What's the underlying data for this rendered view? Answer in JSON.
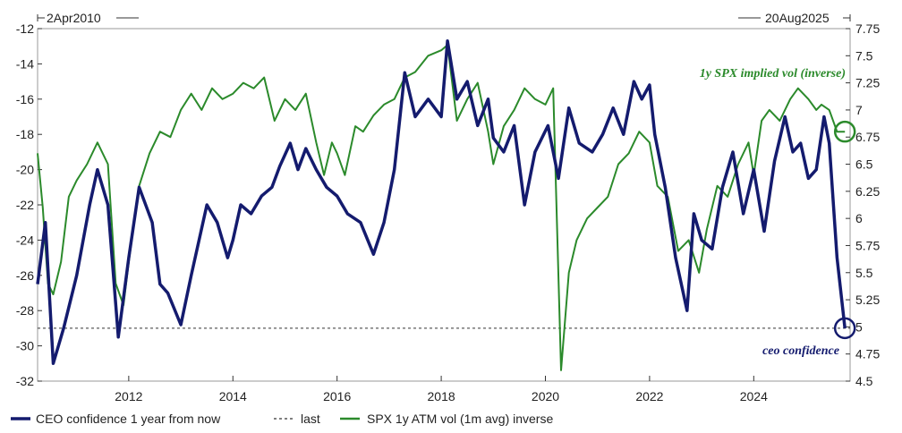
{
  "chart_data": {
    "type": "line",
    "date_range": {
      "start": "2Apr2010",
      "end": "20Aug2025"
    },
    "x_ticks": [
      "2012",
      "2014",
      "2016",
      "2018",
      "2020",
      "2022",
      "2024"
    ],
    "left_axis": {
      "ylim": [
        -32,
        -12
      ],
      "ticks": [
        "-12",
        "-14",
        "-16",
        "-18",
        "-20",
        "-22",
        "-24",
        "-26",
        "-28",
        "-30",
        "-32"
      ]
    },
    "right_axis": {
      "ylim": [
        4.5,
        7.75
      ],
      "ticks": [
        "7.75",
        "7.5",
        "7.25",
        "7",
        "6.75",
        "6.5",
        "6.25",
        "6",
        "5.75",
        "5.5",
        "5.25",
        "5",
        "4.75",
        "4.5"
      ]
    },
    "series": [
      {
        "name": "CEO confidence 1 year from now",
        "axis": "left",
        "color": "#141b6e",
        "points": [
          [
            2010.25,
            -26.5
          ],
          [
            2010.4,
            -23
          ],
          [
            2010.55,
            -31
          ],
          [
            2010.75,
            -29
          ],
          [
            2011.0,
            -26
          ],
          [
            2011.25,
            -22
          ],
          [
            2011.4,
            -20
          ],
          [
            2011.6,
            -22
          ],
          [
            2011.8,
            -29.5
          ],
          [
            2012.0,
            -25
          ],
          [
            2012.2,
            -21
          ],
          [
            2012.45,
            -23
          ],
          [
            2012.6,
            -26.5
          ],
          [
            2012.75,
            -27
          ],
          [
            2013.0,
            -28.8
          ],
          [
            2013.2,
            -26
          ],
          [
            2013.5,
            -22
          ],
          [
            2013.7,
            -23
          ],
          [
            2013.9,
            -25
          ],
          [
            2014.0,
            -24
          ],
          [
            2014.15,
            -22
          ],
          [
            2014.35,
            -22.5
          ],
          [
            2014.55,
            -21.5
          ],
          [
            2014.75,
            -21
          ],
          [
            2014.9,
            -19.8
          ],
          [
            2015.1,
            -18.5
          ],
          [
            2015.25,
            -20
          ],
          [
            2015.4,
            -18.8
          ],
          [
            2015.6,
            -20
          ],
          [
            2015.8,
            -21
          ],
          [
            2016.0,
            -21.5
          ],
          [
            2016.2,
            -22.5
          ],
          [
            2016.45,
            -23
          ],
          [
            2016.7,
            -24.8
          ],
          [
            2016.9,
            -23
          ],
          [
            2017.1,
            -20
          ],
          [
            2017.3,
            -14.5
          ],
          [
            2017.5,
            -17
          ],
          [
            2017.75,
            -16
          ],
          [
            2018.0,
            -17
          ],
          [
            2018.12,
            -12.7
          ],
          [
            2018.3,
            -16
          ],
          [
            2018.5,
            -15
          ],
          [
            2018.7,
            -17.5
          ],
          [
            2018.9,
            -16
          ],
          [
            2019.0,
            -18.2
          ],
          [
            2019.2,
            -19
          ],
          [
            2019.4,
            -17.5
          ],
          [
            2019.6,
            -22
          ],
          [
            2019.8,
            -19
          ],
          [
            2020.05,
            -17.5
          ],
          [
            2020.25,
            -20.5
          ],
          [
            2020.45,
            -16.5
          ],
          [
            2020.65,
            -18.5
          ],
          [
            2020.9,
            -19
          ],
          [
            2021.1,
            -18
          ],
          [
            2021.3,
            -16.5
          ],
          [
            2021.5,
            -18
          ],
          [
            2021.7,
            -15
          ],
          [
            2021.85,
            -16
          ],
          [
            2022.0,
            -15.2
          ],
          [
            2022.1,
            -18
          ],
          [
            2022.3,
            -21
          ],
          [
            2022.5,
            -25
          ],
          [
            2022.72,
            -28
          ],
          [
            2022.85,
            -22.5
          ],
          [
            2023.0,
            -24
          ],
          [
            2023.2,
            -24.5
          ],
          [
            2023.4,
            -21
          ],
          [
            2023.6,
            -19
          ],
          [
            2023.8,
            -22.5
          ],
          [
            2024.0,
            -20
          ],
          [
            2024.2,
            -23.5
          ],
          [
            2024.4,
            -19.5
          ],
          [
            2024.6,
            -17
          ],
          [
            2024.75,
            -19
          ],
          [
            2024.9,
            -18.5
          ],
          [
            2025.05,
            -20.5
          ],
          [
            2025.2,
            -20
          ],
          [
            2025.35,
            -17
          ],
          [
            2025.45,
            -18.5
          ],
          [
            2025.6,
            -25
          ],
          [
            2025.75,
            -29
          ]
        ]
      },
      {
        "name": "last",
        "axis": "left",
        "style": "dotted",
        "color": "#333333",
        "value": -29
      },
      {
        "name": "SPX 1y ATM vol (1m avg) inverse",
        "axis": "right",
        "color": "#2b8a2b",
        "points": [
          [
            2010.25,
            6.6
          ],
          [
            2010.35,
            6.1
          ],
          [
            2010.45,
            5.4
          ],
          [
            2010.55,
            5.3
          ],
          [
            2010.7,
            5.6
          ],
          [
            2010.85,
            6.2
          ],
          [
            2011.0,
            6.35
          ],
          [
            2011.2,
            6.5
          ],
          [
            2011.4,
            6.7
          ],
          [
            2011.6,
            6.5
          ],
          [
            2011.75,
            5.4
          ],
          [
            2011.9,
            5.2
          ],
          [
            2012.0,
            5.6
          ],
          [
            2012.2,
            6.3
          ],
          [
            2012.4,
            6.6
          ],
          [
            2012.6,
            6.8
          ],
          [
            2012.8,
            6.75
          ],
          [
            2013.0,
            7.0
          ],
          [
            2013.2,
            7.15
          ],
          [
            2013.4,
            7.0
          ],
          [
            2013.6,
            7.2
          ],
          [
            2013.8,
            7.1
          ],
          [
            2014.0,
            7.15
          ],
          [
            2014.2,
            7.25
          ],
          [
            2014.4,
            7.2
          ],
          [
            2014.6,
            7.3
          ],
          [
            2014.8,
            6.9
          ],
          [
            2015.0,
            7.1
          ],
          [
            2015.2,
            7.0
          ],
          [
            2015.4,
            7.15
          ],
          [
            2015.6,
            6.7
          ],
          [
            2015.75,
            6.4
          ],
          [
            2015.9,
            6.7
          ],
          [
            2016.0,
            6.6
          ],
          [
            2016.15,
            6.4
          ],
          [
            2016.35,
            6.85
          ],
          [
            2016.5,
            6.8
          ],
          [
            2016.7,
            6.95
          ],
          [
            2016.9,
            7.05
          ],
          [
            2017.1,
            7.1
          ],
          [
            2017.3,
            7.3
          ],
          [
            2017.5,
            7.35
          ],
          [
            2017.75,
            7.5
          ],
          [
            2018.0,
            7.55
          ],
          [
            2018.12,
            7.6
          ],
          [
            2018.3,
            6.9
          ],
          [
            2018.5,
            7.1
          ],
          [
            2018.7,
            7.25
          ],
          [
            2018.9,
            6.8
          ],
          [
            2019.0,
            6.5
          ],
          [
            2019.2,
            6.85
          ],
          [
            2019.4,
            7.0
          ],
          [
            2019.6,
            7.2
          ],
          [
            2019.8,
            7.1
          ],
          [
            2020.0,
            7.05
          ],
          [
            2020.15,
            7.2
          ],
          [
            2020.3,
            4.6
          ],
          [
            2020.45,
            5.5
          ],
          [
            2020.6,
            5.8
          ],
          [
            2020.8,
            6.0
          ],
          [
            2021.0,
            6.1
          ],
          [
            2021.2,
            6.2
          ],
          [
            2021.4,
            6.5
          ],
          [
            2021.6,
            6.6
          ],
          [
            2021.8,
            6.8
          ],
          [
            2022.0,
            6.7
          ],
          [
            2022.15,
            6.3
          ],
          [
            2022.35,
            6.2
          ],
          [
            2022.55,
            5.7
          ],
          [
            2022.75,
            5.8
          ],
          [
            2022.95,
            5.5
          ],
          [
            2023.1,
            5.9
          ],
          [
            2023.3,
            6.3
          ],
          [
            2023.5,
            6.2
          ],
          [
            2023.7,
            6.5
          ],
          [
            2023.9,
            6.7
          ],
          [
            2024.0,
            6.4
          ],
          [
            2024.15,
            6.9
          ],
          [
            2024.3,
            7.0
          ],
          [
            2024.5,
            6.9
          ],
          [
            2024.7,
            7.1
          ],
          [
            2024.85,
            7.2
          ],
          [
            2025.05,
            7.1
          ],
          [
            2025.2,
            7.0
          ],
          [
            2025.3,
            7.05
          ],
          [
            2025.45,
            7.0
          ],
          [
            2025.6,
            6.8
          ],
          [
            2025.75,
            6.8
          ]
        ]
      }
    ],
    "annotations": [
      {
        "text": "1y SPX implied vol (inverse)",
        "color": "#2b8a2b"
      },
      {
        "text": "ceo confidence",
        "color": "#141b6e"
      }
    ],
    "legend_position": "bottom-left",
    "grid": false
  },
  "legend": {
    "ceo": "CEO confidence 1 year from now",
    "last": "last",
    "spx": "SPX 1y ATM vol (1m avg) inverse"
  }
}
